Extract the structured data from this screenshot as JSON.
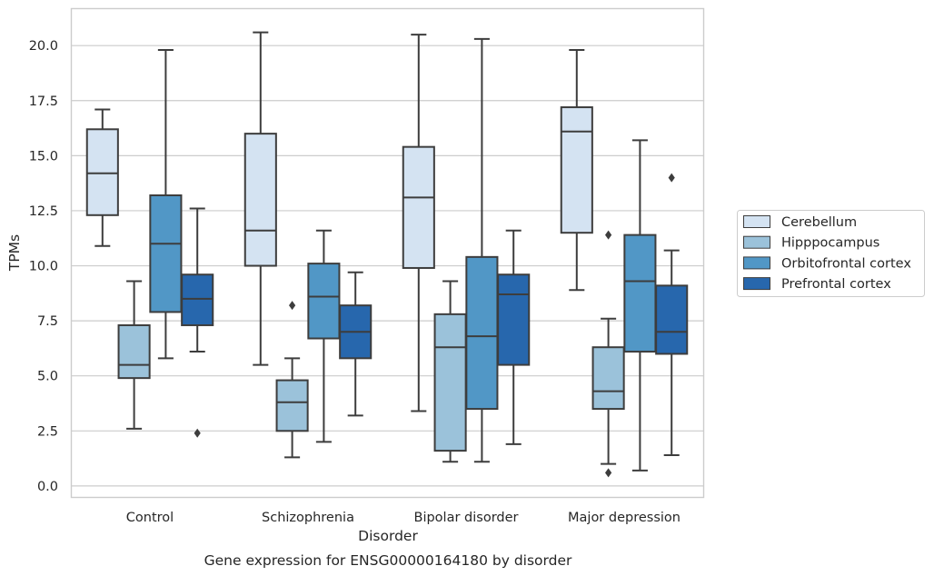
{
  "chart_data": {
    "type": "box",
    "title": "",
    "caption": "Gene expression for ENSG00000164180 by disorder",
    "xlabel": "Disorder",
    "ylabel": "TPMs",
    "ylim": [
      -0.5,
      21.7
    ],
    "yticks": [
      0.0,
      2.5,
      5.0,
      7.5,
      10.0,
      12.5,
      15.0,
      17.5,
      20.0
    ],
    "ytick_labels": [
      "0.0",
      "2.5",
      "5.0",
      "7.5",
      "10.0",
      "12.5",
      "15.0",
      "17.5",
      "20.0"
    ],
    "grid": "horizontal",
    "legend_position": "right",
    "categories": [
      "Control",
      "Schizophrenia",
      "Bipolar disorder",
      "Major depression"
    ],
    "series": [
      {
        "name": "Cerebellum",
        "color": "#d4e3f2",
        "boxes": [
          {
            "whislo": 10.9,
            "q1": 12.3,
            "med": 14.2,
            "q3": 16.2,
            "whishi": 17.1,
            "fliers": []
          },
          {
            "whislo": 5.5,
            "q1": 10.0,
            "med": 11.6,
            "q3": 16.0,
            "whishi": 20.6,
            "fliers": []
          },
          {
            "whislo": 3.4,
            "q1": 9.9,
            "med": 13.1,
            "q3": 15.4,
            "whishi": 20.5,
            "fliers": []
          },
          {
            "whislo": 8.9,
            "q1": 11.5,
            "med": 16.1,
            "q3": 17.2,
            "whishi": 19.8,
            "fliers": []
          }
        ]
      },
      {
        "name": "Hipppocampus",
        "color": "#9bc2da",
        "boxes": [
          {
            "whislo": 2.6,
            "q1": 4.9,
            "med": 5.5,
            "q3": 7.3,
            "whishi": 9.3,
            "fliers": []
          },
          {
            "whislo": 1.3,
            "q1": 2.5,
            "med": 3.8,
            "q3": 4.8,
            "whishi": 5.8,
            "fliers": [
              8.2
            ]
          },
          {
            "whislo": 1.1,
            "q1": 1.6,
            "med": 6.3,
            "q3": 7.8,
            "whishi": 9.3,
            "fliers": []
          },
          {
            "whislo": 1.0,
            "q1": 3.5,
            "med": 4.3,
            "q3": 6.3,
            "whishi": 7.6,
            "fliers": [
              0.6,
              11.4
            ]
          }
        ]
      },
      {
        "name": "Orbitofrontal cortex",
        "color": "#5197c6",
        "boxes": [
          {
            "whislo": 5.8,
            "q1": 7.9,
            "med": 11.0,
            "q3": 13.2,
            "whishi": 19.8,
            "fliers": []
          },
          {
            "whislo": 2.0,
            "q1": 6.7,
            "med": 8.6,
            "q3": 10.1,
            "whishi": 11.6,
            "fliers": []
          },
          {
            "whislo": 1.1,
            "q1": 3.5,
            "med": 6.8,
            "q3": 10.4,
            "whishi": 20.3,
            "fliers": []
          },
          {
            "whislo": 0.7,
            "q1": 6.1,
            "med": 9.3,
            "q3": 11.4,
            "whishi": 15.7,
            "fliers": []
          }
        ]
      },
      {
        "name": "Prefrontal cortex",
        "color": "#2767ad",
        "boxes": [
          {
            "whislo": 6.1,
            "q1": 7.3,
            "med": 8.5,
            "q3": 9.6,
            "whishi": 12.6,
            "fliers": [
              2.4
            ]
          },
          {
            "whislo": 3.2,
            "q1": 5.8,
            "med": 7.0,
            "q3": 8.2,
            "whishi": 9.7,
            "fliers": []
          },
          {
            "whislo": 1.9,
            "q1": 5.5,
            "med": 8.7,
            "q3": 9.6,
            "whishi": 11.6,
            "fliers": []
          },
          {
            "whislo": 1.4,
            "q1": 6.0,
            "med": 7.0,
            "q3": 9.1,
            "whishi": 10.7,
            "fliers": [
              14.0
            ]
          }
        ]
      }
    ]
  }
}
